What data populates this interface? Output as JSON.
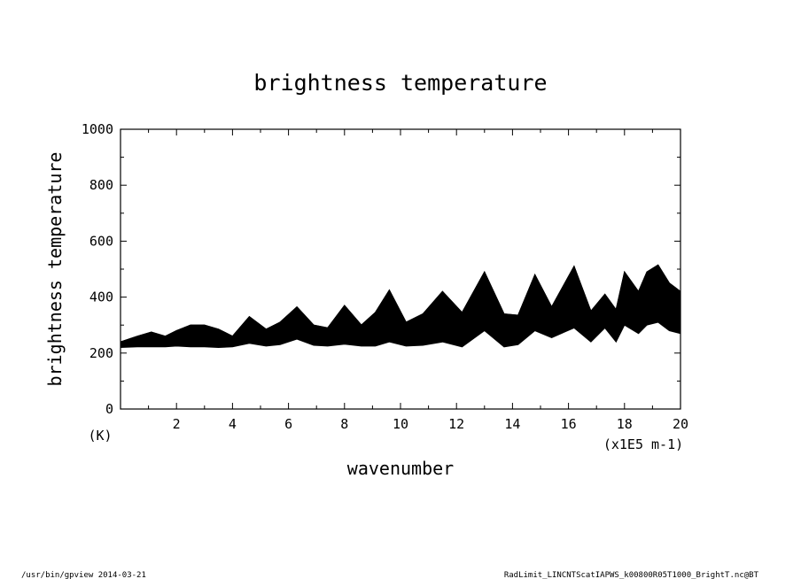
{
  "chart_data": {
    "type": "line",
    "title": "brightness temperature",
    "xlabel": "wavenumber",
    "ylabel": "brightness temperature",
    "x_unit": "(x1E5 m-1)",
    "y_unit": "(K)",
    "xlim": [
      0,
      20
    ],
    "ylim": [
      0,
      1000
    ],
    "x_ticks": [
      "2",
      "4",
      "6",
      "8",
      "10",
      "12",
      "14",
      "16",
      "18",
      "20"
    ],
    "y_ticks": [
      "0",
      "200",
      "400",
      "600",
      "800",
      "1000"
    ],
    "series": [
      {
        "color": "#000000",
        "x": [
          0.0,
          0.6,
          1.1,
          1.6,
          2.0,
          2.5,
          3.0,
          3.5,
          4.0,
          4.6,
          5.2,
          5.7,
          6.3,
          6.9,
          7.4,
          8.0,
          8.6,
          9.1,
          9.6,
          10.2,
          10.8,
          11.5,
          12.2,
          13.0,
          13.7,
          14.2,
          14.8,
          15.4,
          16.2,
          16.8,
          17.3,
          17.7,
          18.0,
          18.5,
          18.8,
          19.2,
          19.6,
          20.0
        ],
        "upper": [
          240,
          260,
          275,
          260,
          280,
          300,
          300,
          285,
          260,
          330,
          285,
          310,
          365,
          300,
          290,
          370,
          300,
          345,
          425,
          310,
          340,
          420,
          345,
          490,
          340,
          335,
          480,
          365,
          510,
          350,
          410,
          355,
          490,
          420,
          490,
          515,
          450,
          420
        ],
        "lower": [
          220,
          222,
          222,
          222,
          225,
          222,
          222,
          220,
          222,
          235,
          225,
          230,
          250,
          228,
          225,
          232,
          225,
          225,
          240,
          225,
          228,
          240,
          222,
          280,
          222,
          230,
          280,
          255,
          290,
          240,
          290,
          240,
          300,
          270,
          300,
          310,
          280,
          270
        ]
      }
    ]
  },
  "footer": {
    "left": "/usr/bin/gpview  2014-03-21",
    "right": "RadLimit_LINCNTScatIAPWS_k00800R05T1000_BrightT.nc@BT"
  }
}
